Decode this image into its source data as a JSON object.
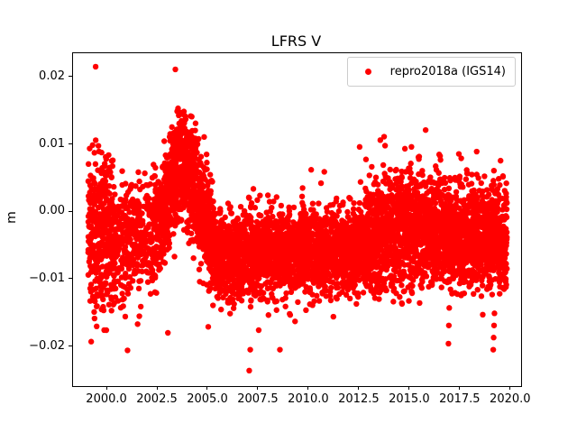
{
  "figure": {
    "title": "LFRS V",
    "ylabel": "m",
    "background_color": "#ffffff",
    "spine_color": "#000000"
  },
  "legend": {
    "label": "repro2018a (IGS14)",
    "marker_color": "#ff0000",
    "border_color": "#cccccc",
    "position": "upper right"
  },
  "chart_data": {
    "type": "scatter",
    "title": "LFRS V",
    "xlabel": "",
    "ylabel": "m",
    "series_name": "repro2018a (IGS14)",
    "marker_color": "#ff0000",
    "marker_radius_px": 3.2,
    "grid": false,
    "legend_position": "upper right",
    "xlim": [
      1998.3,
      2020.5
    ],
    "ylim": [
      -0.0258,
      0.0236
    ],
    "xticks": [
      2000.0,
      2002.5,
      2005.0,
      2007.5,
      2010.0,
      2012.5,
      2015.0,
      2017.5,
      2020.0
    ],
    "xtick_labels": [
      "2000.0",
      "2002.5",
      "2005.0",
      "2007.5",
      "2010.0",
      "2012.5",
      "2015.0",
      "2017.5",
      "2020.0"
    ],
    "yticks": [
      -0.02,
      -0.01,
      0.0,
      0.01,
      0.02
    ],
    "ytick_labels": [
      "−0.02",
      "−0.01",
      "0.00",
      "0.01",
      "0.02"
    ],
    "data_span_years": [
      1999.05,
      2019.8
    ],
    "value_range_m": [
      -0.0235,
      0.0216
    ],
    "generator_seed": 20180314,
    "distribution_segments": [
      {
        "x0": 1999.05,
        "x1": 1999.5,
        "n": 130,
        "mean0": -0.003,
        "mean1": -0.003,
        "std": 0.006,
        "ymin": -0.0192,
        "ymax": 0.0136
      },
      {
        "x0": 1999.5,
        "x1": 2000.4,
        "n": 270,
        "mean0": -0.003,
        "mean1": -0.0035,
        "std": 0.0055,
        "ymin": -0.0178,
        "ymax": 0.0108
      },
      {
        "x0": 2000.4,
        "x1": 2002.2,
        "n": 300,
        "mean0": -0.0045,
        "mean1": -0.004,
        "std": 0.004,
        "ymin": -0.0168,
        "ymax": 0.0062
      },
      {
        "x0": 2002.2,
        "x1": 2002.8,
        "n": 130,
        "mean0": -0.0025,
        "mean1": -0.0005,
        "std": 0.0045,
        "ymin": -0.0125,
        "ymax": 0.0095
      },
      {
        "x0": 2002.8,
        "x1": 2003.6,
        "n": 290,
        "mean0": 0.0,
        "mean1": 0.0075,
        "std": 0.004,
        "ymin": -0.009,
        "ymax": 0.0158
      },
      {
        "x0": 2003.6,
        "x1": 2004.4,
        "n": 300,
        "mean0": 0.0075,
        "mean1": 0.004,
        "std": 0.0042,
        "ymin": -0.008,
        "ymax": 0.015
      },
      {
        "x0": 2004.4,
        "x1": 2005.3,
        "n": 300,
        "mean0": 0.0035,
        "mean1": -0.006,
        "std": 0.0038,
        "ymin": -0.0155,
        "ymax": 0.0125
      },
      {
        "x0": 2005.3,
        "x1": 2012.4,
        "n": 2150,
        "mean0": -0.0063,
        "mean1": -0.006,
        "std": 0.0031,
        "ymin": -0.0158,
        "ymax": 0.0048
      },
      {
        "x0": 2012.4,
        "x1": 2013.4,
        "n": 310,
        "mean0": -0.005,
        "mean1": -0.0035,
        "std": 0.004,
        "ymin": -0.013,
        "ymax": 0.0097
      },
      {
        "x0": 2013.4,
        "x1": 2016.6,
        "n": 980,
        "mean0": -0.003,
        "mean1": -0.003,
        "std": 0.0046,
        "ymin": -0.0136,
        "ymax": 0.0123
      },
      {
        "x0": 2016.6,
        "x1": 2019.8,
        "n": 980,
        "mean0": -0.0035,
        "mean1": -0.0035,
        "std": 0.0039,
        "ymin": -0.0126,
        "ymax": 0.0092
      }
    ],
    "notable_points": [
      [
        1999.42,
        0.0216
      ],
      [
        2003.37,
        0.0212
      ],
      [
        1999.2,
        -0.0192
      ],
      [
        1999.95,
        -0.0175
      ],
      [
        2001.0,
        -0.0205
      ],
      [
        2001.5,
        -0.0166
      ],
      [
        2003.0,
        -0.0179
      ],
      [
        2005.0,
        -0.017
      ],
      [
        2007.03,
        -0.0235
      ],
      [
        2007.08,
        -0.0204
      ],
      [
        2007.5,
        -0.0175
      ],
      [
        2008.55,
        -0.0204
      ],
      [
        2009.3,
        -0.0162
      ],
      [
        2010.1,
        0.0063
      ],
      [
        2010.75,
        0.006
      ],
      [
        2011.2,
        -0.0155
      ],
      [
        2012.5,
        0.0097
      ],
      [
        2014.6,
        -0.0136
      ],
      [
        2015.77,
        0.0122
      ],
      [
        2016.9,
        -0.0195
      ],
      [
        2016.92,
        -0.0168
      ],
      [
        2016.94,
        -0.0142
      ],
      [
        2018.3,
        0.009
      ],
      [
        2018.6,
        -0.0152
      ],
      [
        2019.12,
        -0.0204
      ],
      [
        2019.14,
        -0.0186
      ],
      [
        2019.16,
        -0.0168
      ],
      [
        2019.18,
        -0.015
      ]
    ]
  }
}
